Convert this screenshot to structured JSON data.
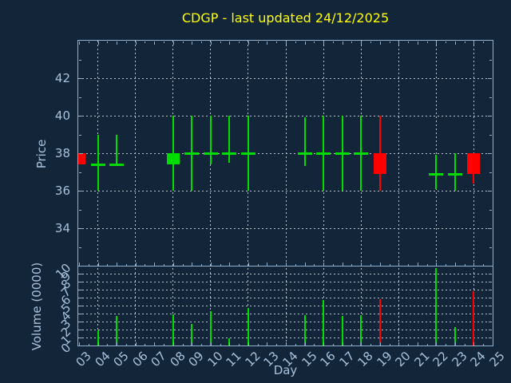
{
  "colors": {
    "background": "#132539",
    "axis": "#8fafcc",
    "text": "#a8c2dc",
    "grid": "#b8c3cc",
    "title": "#ffff00",
    "up": "#00dc00",
    "down": "#ff0000"
  },
  "chart_data": {
    "type": "candlestick_with_volume_bars",
    "title": "CDGP - last updated 24/12/2025",
    "xlabel": "Day",
    "x_tick_labels": [
      "03",
      "04",
      "05",
      "06",
      "07",
      "08",
      "09",
      "10",
      "11",
      "12",
      "13",
      "14",
      "15",
      "16",
      "17",
      "18",
      "19",
      "20",
      "21",
      "22",
      "23",
      "24",
      "25"
    ],
    "x_day_range": [
      3,
      25
    ],
    "grid_days": [
      4,
      6,
      8,
      10,
      12,
      14,
      16,
      18,
      20,
      22,
      24
    ],
    "price_axis": {
      "ylabel": "Price",
      "range": [
        32,
        44
      ],
      "labeled_ticks": [
        34,
        36,
        38,
        40,
        42
      ],
      "grid": true
    },
    "volume_axis": {
      "ylabel": "Volume (0000)",
      "range": [
        0,
        10
      ],
      "labeled_ticks": [
        0,
        1,
        2,
        3,
        4,
        5,
        6,
        7,
        8,
        9,
        10
      ],
      "grid": true
    },
    "candles": [
      {
        "day": 3,
        "label": "03",
        "open": 38.0,
        "high": 38.0,
        "low": 37.4,
        "close": 37.4,
        "dir": "down",
        "volume": 0.0
      },
      {
        "day": 4,
        "label": "04",
        "open": 37.4,
        "high": 39.0,
        "low": 36.0,
        "close": 37.4,
        "dir": "up",
        "volume": 1.9
      },
      {
        "day": 5,
        "label": "05",
        "open": 37.4,
        "high": 39.0,
        "low": 37.4,
        "close": 37.4,
        "dir": "up",
        "volume": 3.7
      },
      {
        "day": 8,
        "label": "08",
        "open": 37.4,
        "high": 40.0,
        "low": 36.0,
        "close": 38.0,
        "dir": "up",
        "volume": 3.9
      },
      {
        "day": 9,
        "label": "09",
        "open": 38.0,
        "high": 40.0,
        "low": 36.0,
        "close": 38.0,
        "dir": "up",
        "volume": 2.7
      },
      {
        "day": 10,
        "label": "10",
        "open": 38.0,
        "high": 40.0,
        "low": 37.4,
        "close": 38.0,
        "dir": "up",
        "volume": 4.3
      },
      {
        "day": 11,
        "label": "11",
        "open": 38.0,
        "high": 40.0,
        "low": 37.5,
        "close": 38.0,
        "dir": "up",
        "volume": 0.9
      },
      {
        "day": 12,
        "label": "12",
        "open": 38.0,
        "high": 40.0,
        "low": 36.0,
        "close": 38.0,
        "dir": "up",
        "volume": 4.7
      },
      {
        "day": 15,
        "label": "15",
        "open": 38.0,
        "high": 39.9,
        "low": 37.3,
        "close": 38.0,
        "dir": "up",
        "volume": 3.8
      },
      {
        "day": 16,
        "label": "16",
        "open": 38.0,
        "high": 40.0,
        "low": 36.0,
        "close": 38.0,
        "dir": "up",
        "volume": 5.7
      },
      {
        "day": 17,
        "label": "17",
        "open": 38.0,
        "high": 40.0,
        "low": 36.0,
        "close": 38.0,
        "dir": "up",
        "volume": 3.7
      },
      {
        "day": 18,
        "label": "18",
        "open": 38.0,
        "high": 40.0,
        "low": 36.0,
        "close": 38.0,
        "dir": "up",
        "volume": 3.8
      },
      {
        "day": 19,
        "label": "19",
        "open": 38.0,
        "high": 40.0,
        "low": 36.0,
        "close": 36.9,
        "dir": "down",
        "volume": 5.8
      },
      {
        "day": 22,
        "label": "22",
        "open": 36.9,
        "high": 37.9,
        "low": 36.1,
        "close": 36.9,
        "dir": "up",
        "volume": 9.7
      },
      {
        "day": 23,
        "label": "23",
        "open": 36.9,
        "high": 38.0,
        "low": 36.0,
        "close": 36.9,
        "dir": "up",
        "volume": 2.3
      },
      {
        "day": 24,
        "label": "24",
        "open": 38.0,
        "high": 38.0,
        "low": 36.4,
        "close": 36.9,
        "dir": "down",
        "volume": 6.8
      }
    ]
  }
}
